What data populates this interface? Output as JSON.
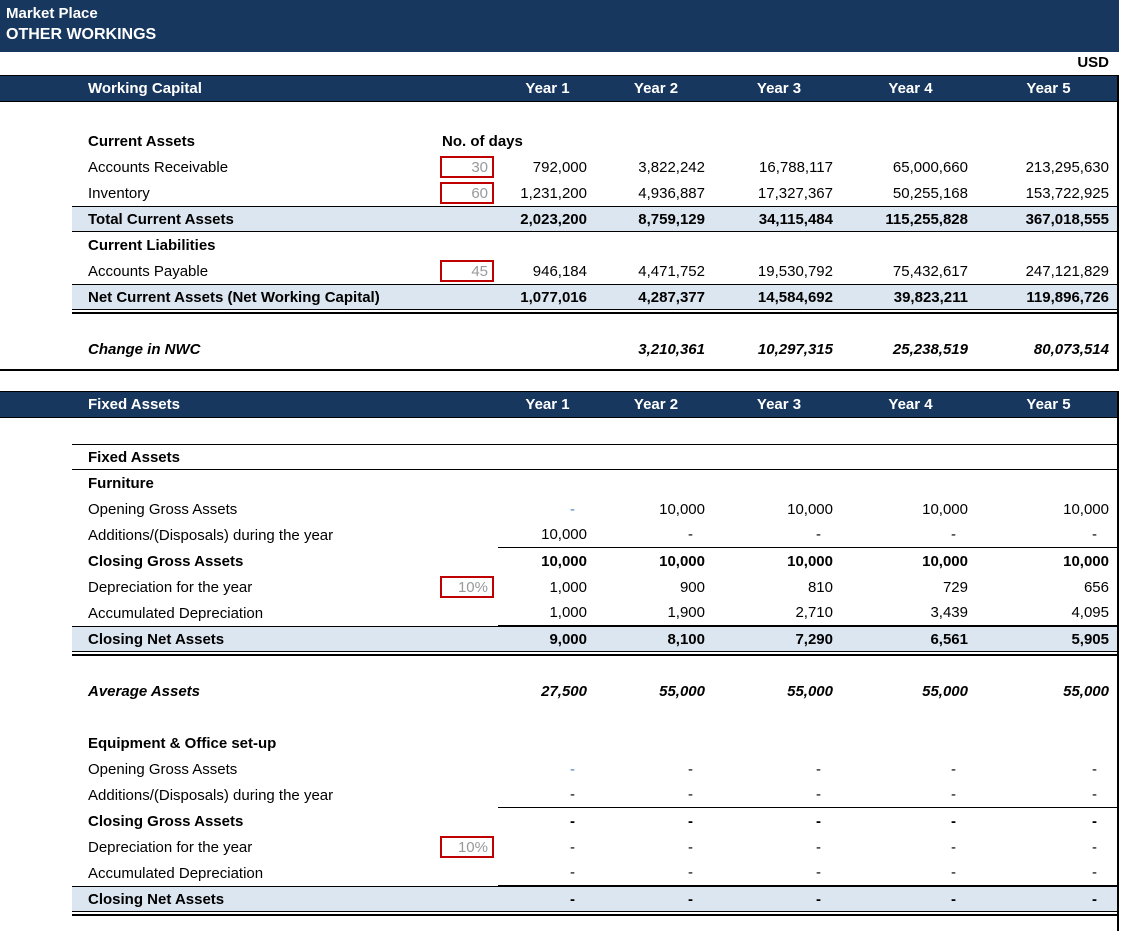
{
  "app": {
    "title_line1": "Market Place",
    "title_line2": "OTHER WORKINGS",
    "currency": "USD"
  },
  "columns": {
    "years": [
      "Year 1",
      "Year 2",
      "Year 3",
      "Year 4",
      "Year 5"
    ]
  },
  "colors": {
    "header_navy": "#17375E",
    "band_blue": "#DCE6F1",
    "input_border_red": "#C00000",
    "input_text_gray": "#999999",
    "input_value_blue": "#4F81BD"
  },
  "working_capital": {
    "section_title": "Working Capital",
    "days_header": "No. of days",
    "current_assets_label": "Current Assets",
    "accounts_receivable": {
      "label": "Accounts Receivable",
      "days": "30",
      "values": [
        "792,000",
        "3,822,242",
        "16,788,117",
        "65,000,660",
        "213,295,630"
      ]
    },
    "inventory": {
      "label": "Inventory",
      "days": "60",
      "values": [
        "1,231,200",
        "4,936,887",
        "17,327,367",
        "50,255,168",
        "153,722,925"
      ]
    },
    "total_current_assets": {
      "label": "Total Current Assets",
      "values": [
        "2,023,200",
        "8,759,129",
        "34,115,484",
        "115,255,828",
        "367,018,555"
      ]
    },
    "current_liabilities_label": "Current Liabilities",
    "accounts_payable": {
      "label": "Accounts Payable",
      "days": "45",
      "values": [
        "946,184",
        "4,471,752",
        "19,530,792",
        "75,432,617",
        "247,121,829"
      ]
    },
    "net_current_assets": {
      "label": "Net Current Assets (Net Working Capital)",
      "values": [
        "1,077,016",
        "4,287,377",
        "14,584,692",
        "39,823,211",
        "119,896,726"
      ]
    },
    "change_in_nwc": {
      "label": "Change in NWC",
      "values": [
        "",
        "3,210,361",
        "10,297,315",
        "25,238,519",
        "80,073,514"
      ]
    }
  },
  "fixed_assets": {
    "section_title": "Fixed Assets",
    "subheader": "Fixed Assets",
    "furniture": {
      "label": "Furniture",
      "opening": {
        "label": "Opening Gross Assets",
        "values": [
          "-",
          "10,000",
          "10,000",
          "10,000",
          "10,000"
        ]
      },
      "additions": {
        "label": "Additions/(Disposals) during the year",
        "values": [
          "10,000",
          "-",
          "-",
          "-",
          "-"
        ]
      },
      "closing_gross": {
        "label": "Closing Gross Assets",
        "values": [
          "10,000",
          "10,000",
          "10,000",
          "10,000",
          "10,000"
        ]
      },
      "depreciation": {
        "label": "Depreciation for the year",
        "rate": "10%",
        "values": [
          "1,000",
          "900",
          "810",
          "729",
          "656"
        ]
      },
      "accumulated": {
        "label": "Accumulated Depreciation",
        "values": [
          "1,000",
          "1,900",
          "2,710",
          "3,439",
          "4,095"
        ]
      },
      "closing_net": {
        "label": "Closing Net Assets",
        "values": [
          "9,000",
          "8,100",
          "7,290",
          "6,561",
          "5,905"
        ]
      }
    },
    "average_assets": {
      "label": "Average Assets",
      "values": [
        "27,500",
        "55,000",
        "55,000",
        "55,000",
        "55,000"
      ]
    },
    "equipment": {
      "label": "Equipment & Office set-up",
      "opening": {
        "label": "Opening Gross Assets",
        "values": [
          "-",
          "-",
          "-",
          "-",
          "-"
        ]
      },
      "additions": {
        "label": "Additions/(Disposals) during the year",
        "values": [
          "-",
          "-",
          "-",
          "-",
          "-"
        ]
      },
      "closing_gross": {
        "label": "Closing Gross Assets",
        "values": [
          "-",
          "-",
          "-",
          "-",
          "-"
        ]
      },
      "depreciation": {
        "label": "Depreciation for the year",
        "rate": "10%",
        "values": [
          "-",
          "-",
          "-",
          "-",
          "-"
        ]
      },
      "accumulated": {
        "label": "Accumulated Depreciation",
        "values": [
          "-",
          "-",
          "-",
          "-",
          "-"
        ]
      },
      "closing_net": {
        "label": "Closing Net Assets",
        "values": [
          "-",
          "-",
          "-",
          "-",
          "-"
        ]
      }
    }
  }
}
